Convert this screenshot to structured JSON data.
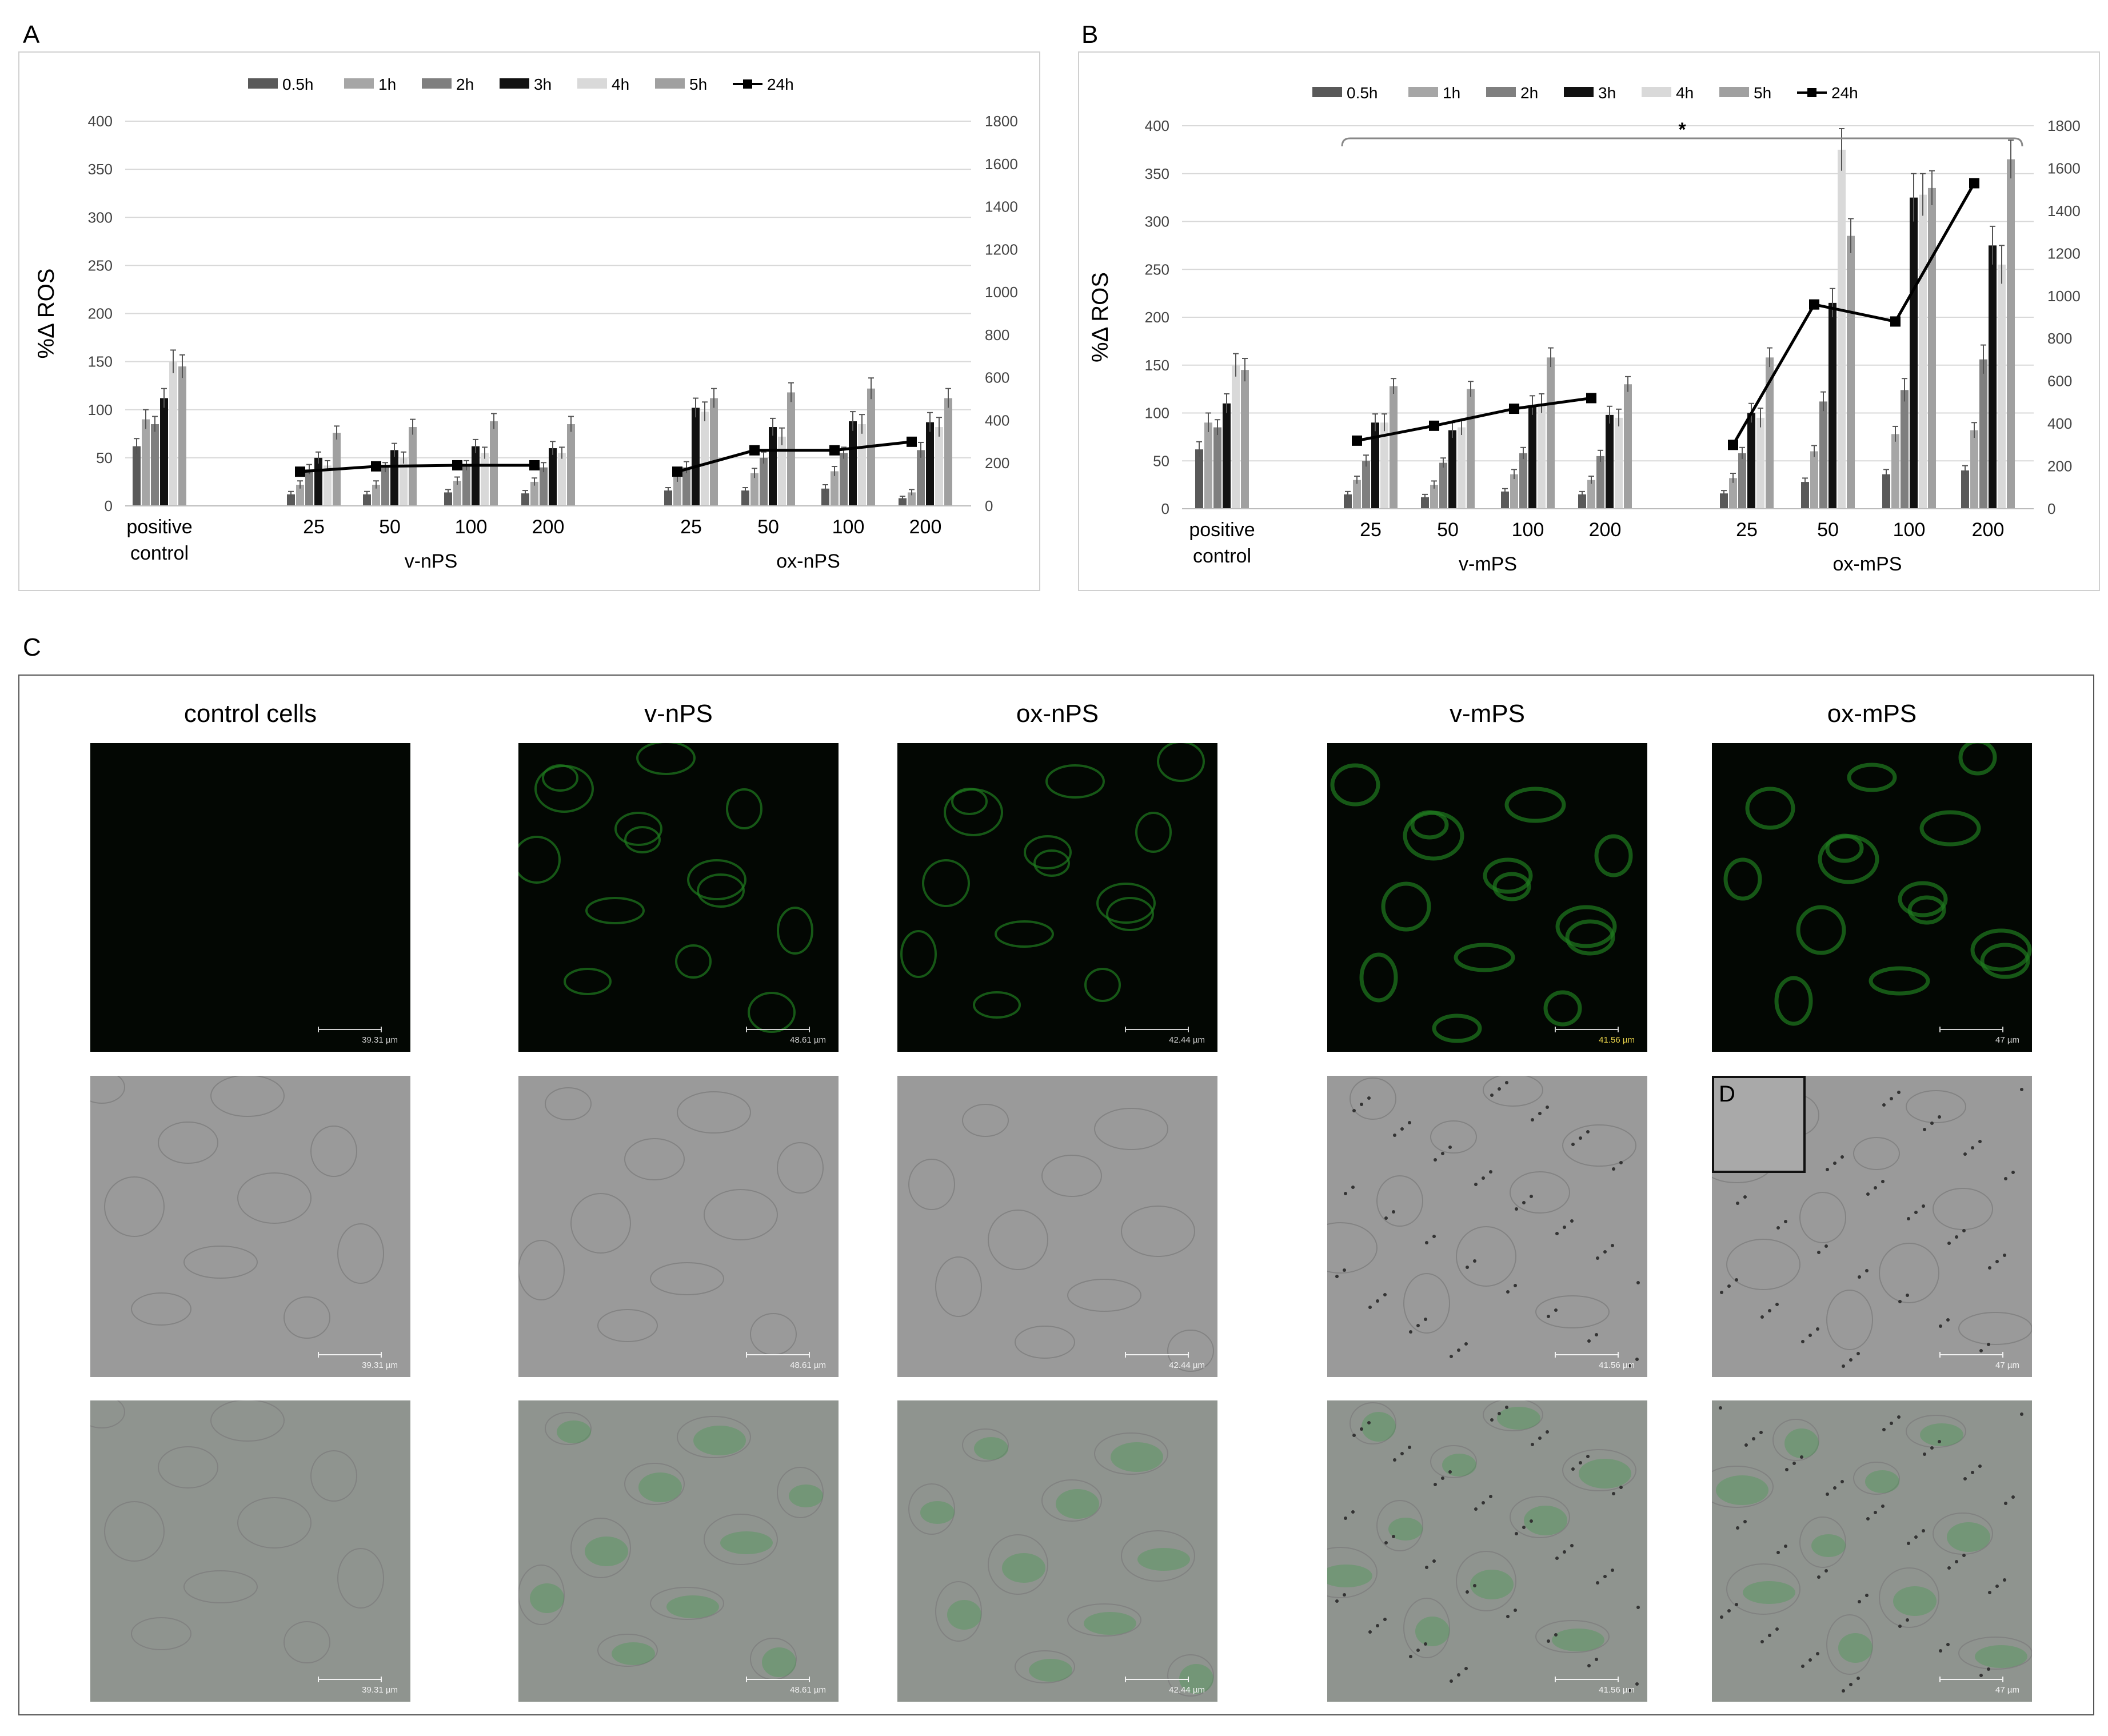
{
  "panel_labels": {
    "a": "A",
    "b": "B",
    "c": "C",
    "d": "D"
  },
  "colors": {
    "0.5h": "#595959",
    "1h": "#a6a6a6",
    "2h": "#7f7f7f",
    "3h": "#111111",
    "4h": "#d9d9d9",
    "5h": "#a0a0a0",
    "24h": "#000000"
  },
  "chart_data": [
    {
      "panel": "A",
      "type": "bar",
      "ylabel": "%Δ ROS",
      "ylim": [
        0,
        400
      ],
      "yticks": [
        0,
        50,
        100,
        150,
        200,
        250,
        300,
        350,
        400
      ],
      "y2lim": [
        0,
        1800
      ],
      "y2ticks": [
        0,
        200,
        400,
        600,
        800,
        1000,
        1200,
        1400,
        1600,
        1800
      ],
      "legend_position": "top",
      "groups": [
        {
          "label": "positive\ncontrol",
          "categories": [
            ""
          ]
        },
        {
          "label": "v-nPS",
          "categories": [
            "25",
            "50",
            "100",
            "200"
          ]
        },
        {
          "label": "ox-nPS",
          "categories": [
            "25",
            "50",
            "100",
            "200"
          ]
        }
      ],
      "series": [
        {
          "name": "0.5h",
          "type": "bar",
          "values": [
            62,
            12,
            12,
            14,
            13,
            16,
            16,
            18,
            8
          ],
          "errors": [
            8,
            3,
            3,
            3,
            3,
            3,
            3,
            4,
            2
          ]
        },
        {
          "name": "1h",
          "type": "bar",
          "values": [
            90,
            22,
            22,
            26,
            25,
            30,
            34,
            36,
            14
          ],
          "errors": [
            10,
            4,
            4,
            4,
            4,
            5,
            5,
            5,
            3
          ]
        },
        {
          "name": "2h",
          "type": "bar",
          "values": [
            85,
            38,
            40,
            42,
            40,
            40,
            50,
            55,
            58
          ],
          "errors": [
            8,
            5,
            5,
            5,
            5,
            6,
            6,
            6,
            8
          ]
        },
        {
          "name": "3h",
          "type": "bar",
          "values": [
            112,
            50,
            58,
            62,
            60,
            102,
            82,
            88,
            87
          ],
          "errors": [
            10,
            6,
            7,
            7,
            7,
            10,
            9,
            10,
            10
          ]
        },
        {
          "name": "4h",
          "type": "bar",
          "values": [
            150,
            42,
            50,
            55,
            55,
            98,
            72,
            85,
            82
          ],
          "errors": [
            12,
            5,
            6,
            6,
            6,
            10,
            9,
            10,
            10
          ]
        },
        {
          "name": "5h",
          "type": "bar",
          "values": [
            145,
            76,
            82,
            88,
            85,
            112,
            118,
            122,
            112
          ],
          "errors": [
            12,
            7,
            8,
            8,
            8,
            10,
            10,
            11,
            10
          ]
        },
        {
          "name": "24h",
          "type": "line",
          "axis": "right",
          "values": [
            null,
            160,
            185,
            190,
            190,
            160,
            260,
            260,
            300
          ]
        }
      ]
    },
    {
      "panel": "B",
      "type": "bar",
      "ylabel": "%Δ ROS",
      "ylim": [
        0,
        400
      ],
      "yticks": [
        0,
        50,
        100,
        150,
        200,
        250,
        300,
        350,
        400
      ],
      "y2lim": [
        0,
        1800
      ],
      "y2ticks": [
        0,
        200,
        400,
        600,
        800,
        1000,
        1200,
        1400,
        1600,
        1800
      ],
      "legend_position": "top",
      "annotation": "*",
      "groups": [
        {
          "label": "positive\ncontrol",
          "categories": [
            ""
          ]
        },
        {
          "label": "v-mPS",
          "categories": [
            "25",
            "50",
            "100",
            "200"
          ]
        },
        {
          "label": "ox-mPS",
          "categories": [
            "25",
            "50",
            "100",
            "200"
          ]
        }
      ],
      "series": [
        {
          "name": "0.5h",
          "type": "bar",
          "values": [
            62,
            15,
            12,
            18,
            15,
            16,
            28,
            36,
            40
          ],
          "errors": [
            8,
            3,
            3,
            3,
            3,
            3,
            4,
            5,
            5
          ]
        },
        {
          "name": "1h",
          "type": "bar",
          "values": [
            90,
            30,
            25,
            36,
            30,
            32,
            60,
            78,
            82
          ],
          "errors": [
            10,
            4,
            4,
            5,
            4,
            5,
            6,
            8,
            8
          ]
        },
        {
          "name": "2h",
          "type": "bar",
          "values": [
            85,
            50,
            48,
            58,
            55,
            58,
            112,
            124,
            156
          ],
          "errors": [
            8,
            6,
            5,
            6,
            6,
            6,
            10,
            12,
            15
          ]
        },
        {
          "name": "3h",
          "type": "bar",
          "values": [
            110,
            90,
            82,
            108,
            98,
            100,
            215,
            325,
            275
          ],
          "errors": [
            10,
            9,
            8,
            10,
            9,
            10,
            15,
            25,
            20
          ]
        },
        {
          "name": "4h",
          "type": "bar",
          "values": [
            150,
            90,
            85,
            110,
            95,
            95,
            375,
            328,
            255
          ],
          "errors": [
            12,
            9,
            8,
            10,
            9,
            10,
            22,
            22,
            20
          ]
        },
        {
          "name": "5h",
          "type": "bar",
          "values": [
            145,
            128,
            125,
            158,
            130,
            158,
            285,
            335,
            365
          ],
          "errors": [
            12,
            8,
            8,
            10,
            8,
            10,
            18,
            18,
            20
          ]
        },
        {
          "name": "24h",
          "type": "line",
          "axis": "right",
          "values": [
            null,
            320,
            390,
            470,
            520,
            300,
            960,
            880,
            1530
          ]
        }
      ]
    }
  ],
  "figure_c": {
    "columns": [
      {
        "title": "control cells",
        "scale": "39.31 µm"
      },
      {
        "title": "v-nPS",
        "scale": "48.61 µm"
      },
      {
        "title": "ox-nPS",
        "scale": "42.44 µm"
      },
      {
        "title": "v-mPS",
        "scale": "41.56 µm"
      },
      {
        "title": "ox-mPS",
        "scale": "47 µm"
      }
    ]
  }
}
